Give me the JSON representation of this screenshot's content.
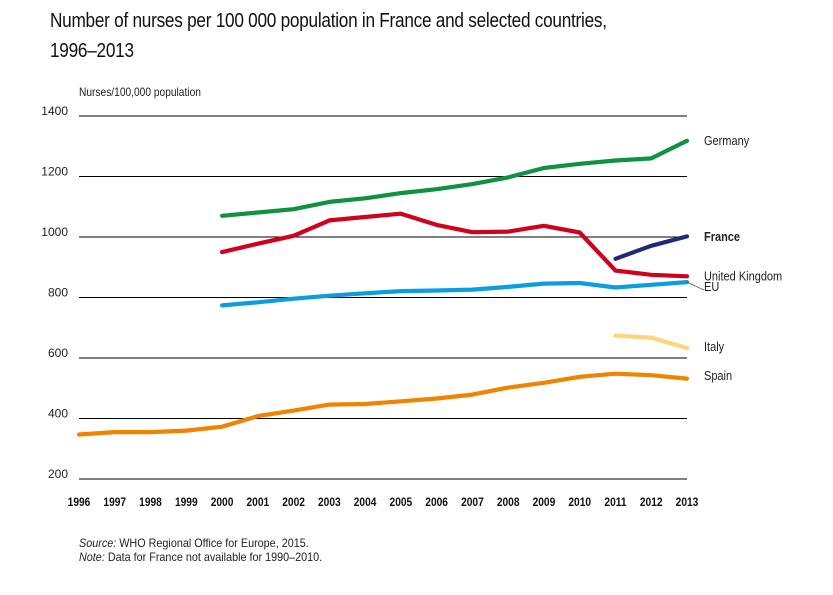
{
  "chart_data": {
    "type": "line",
    "title": "Number of nurses per 100 000 population in France and selected countries, 1996–2013",
    "title_lines": [
      "Number of nurses per 100 000 population in France and selected countries,",
      "1996–2013"
    ],
    "xlabel": "",
    "ylabel": "Nurses/100,000 population",
    "ylim": [
      200,
      1400
    ],
    "yticks": [
      1400,
      1200,
      1000,
      800,
      600,
      400,
      200
    ],
    "x": [
      1996,
      1997,
      1998,
      1999,
      2000,
      2001,
      2002,
      2003,
      2004,
      2005,
      2006,
      2007,
      2008,
      2009,
      2010,
      2011,
      2012,
      2013
    ],
    "grid": true,
    "legend_placement": "right (labels at line ends)",
    "series": [
      {
        "name": "Germany",
        "color": "#0f9142",
        "bold": false,
        "start": 2000,
        "values": [
          1070,
          1081,
          1092,
          1116,
          1128,
          1145,
          1158,
          1175,
          1197,
          1228,
          1242,
          1253,
          1260,
          1318
        ]
      },
      {
        "name": "France",
        "color": "#1f2a7c",
        "bold": true,
        "start": 2011,
        "values": [
          928,
          971,
          1002
        ]
      },
      {
        "name": "United Kingdom",
        "color": "#d0021b",
        "bold": false,
        "start": 2000,
        "values": [
          950,
          978,
          1004,
          1055,
          1066,
          1077,
          1040,
          1016,
          1018,
          1037,
          1015,
          889,
          875,
          870
        ]
      },
      {
        "name": "EU",
        "color": "#0a9de0",
        "bold": false,
        "start": 2000,
        "values": [
          774,
          784,
          796,
          806,
          814,
          821,
          823,
          826,
          835,
          846,
          848,
          833,
          842,
          851
        ]
      },
      {
        "name": "Italy",
        "color": "#fdd57a",
        "bold": false,
        "start": 2011,
        "values": [
          674,
          667,
          633
        ]
      },
      {
        "name": "Spain",
        "color": "#f08300",
        "bold": false,
        "start": 1996,
        "values": [
          347,
          355,
          355,
          360,
          373,
          408,
          426,
          446,
          448,
          457,
          466,
          479,
          502,
          518,
          538,
          548,
          543,
          532
        ]
      }
    ],
    "legend_label_values": {
      "Germany": 1318,
      "France": 1000,
      "United Kingdom": 870,
      "EU": 835,
      "Italy": 636,
      "Spain": 540
    }
  },
  "notes": {
    "source_label": "Source:",
    "source_text": " WHO Regional Office for Europe, 2015.",
    "note_label": "Note:",
    "note_text": " Data for France not available for 1990–2010."
  }
}
